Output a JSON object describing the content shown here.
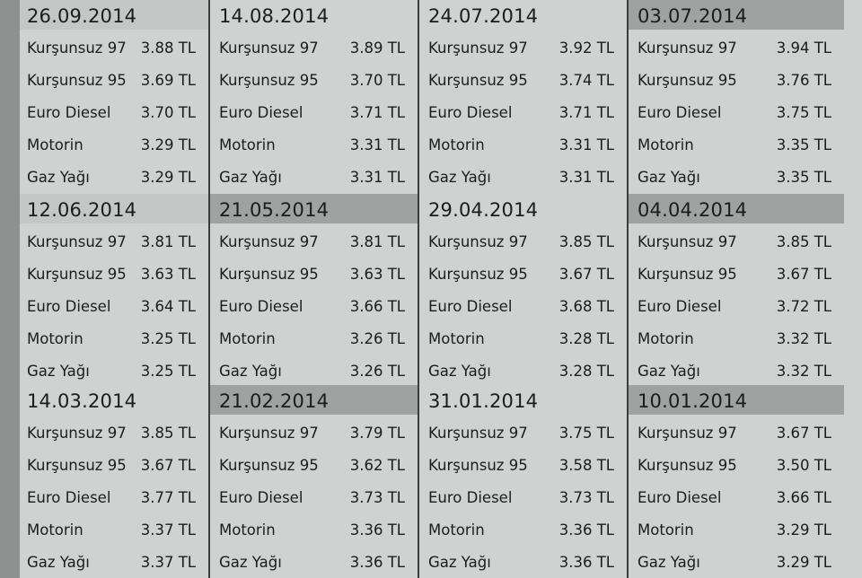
{
  "blocks": [
    {
      "date": "26.09.2014",
      "prices": [
        "3.88 TL",
        "3.69 TL",
        "3.70 TL",
        "3.29 TL",
        "3.29 TL"
      ]
    },
    {
      "date": "14.08.2014",
      "prices": [
        "3.89 TL",
        "3.70 TL",
        "3.71 TL",
        "3.31 TL",
        "3.31 TL"
      ]
    },
    {
      "date": "24.07.2014",
      "prices": [
        "3.92 TL",
        "3.74 TL",
        "3.71 TL",
        "3.31 TL",
        "3.31 TL"
      ]
    },
    {
      "date": "03.07.2014",
      "prices": [
        "3.94 TL",
        "3.76 TL",
        "3.75 TL",
        "3.35 TL",
        "3.35 TL"
      ]
    },
    {
      "date": "12.06.2014",
      "prices": [
        "3.81 TL",
        "3.63 TL",
        "3.64 TL",
        "3.25 TL",
        "3.25 TL"
      ]
    },
    {
      "date": "21.05.2014",
      "prices": [
        "3.81 TL",
        "3.63 TL",
        "3.66 TL",
        "3.26 TL",
        "3.26 TL"
      ]
    },
    {
      "date": "29.04.2014",
      "prices": [
        "3.85 TL",
        "3.67 TL",
        "3.68 TL",
        "3.28 TL",
        "3.28 TL"
      ]
    },
    {
      "date": "04.04.2014",
      "prices": [
        "3.85 TL",
        "3.67 TL",
        "3.72 TL",
        "3.32 TL",
        "3.32 TL"
      ]
    },
    {
      "date": "14.03.2014",
      "prices": [
        "3.85 TL",
        "3.67 TL",
        "3.77 TL",
        "3.37 TL",
        "3.37 TL"
      ]
    },
    {
      "date": "21.02.2014",
      "prices": [
        "3.79 TL",
        "3.62 TL",
        "3.73 TL",
        "3.36 TL",
        "3.36 TL"
      ]
    },
    {
      "date": "31.01.2014",
      "prices": [
        "3.75 TL",
        "3.58 TL",
        "3.73 TL",
        "3.36 TL",
        "3.36 TL"
      ]
    },
    {
      "date": "10.01.2014",
      "prices": [
        "3.67 TL",
        "3.50 TL",
        "3.66 TL",
        "3.29 TL",
        "3.29 TL"
      ]
    }
  ],
  "fuel_names": [
    "Kurşunsuz 97",
    "Kurşunsuz 95",
    "Euro Diesel",
    "Motorin",
    "Gaz Yağı"
  ]
}
